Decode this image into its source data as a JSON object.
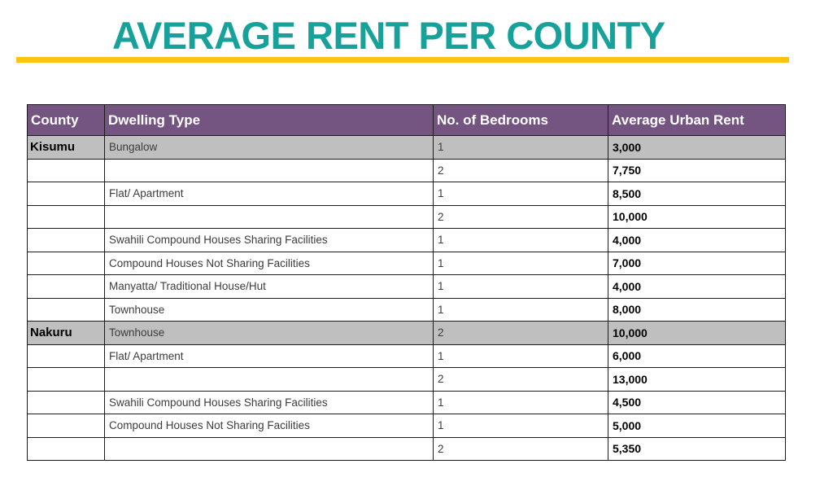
{
  "title": "AVERAGE RENT PER COUNTY",
  "colors": {
    "title_text": "#16A29A",
    "underline": "#FDC40F",
    "header_bg": "#745480",
    "header_text": "#FFFFFF",
    "band_row_bg": "#BFBFBF",
    "grid_border": "#1B1B1B"
  },
  "table": {
    "columns": [
      "County",
      "Dwelling Type",
      "No. of Bedrooms",
      "Average Urban Rent"
    ],
    "rows": [
      {
        "county": "Kisumu",
        "dwelling": "Bungalow",
        "bedrooms": "1",
        "rent": "3,000",
        "band": true
      },
      {
        "county": "",
        "dwelling": "",
        "bedrooms": "2",
        "rent": "7,750",
        "band": false
      },
      {
        "county": "",
        "dwelling": "Flat/ Apartment",
        "bedrooms": "1",
        "rent": "8,500",
        "band": false
      },
      {
        "county": "",
        "dwelling": "",
        "bedrooms": "2",
        "rent": "10,000",
        "band": false
      },
      {
        "county": "",
        "dwelling": "Swahili Compound Houses Sharing Facilities",
        "bedrooms": "1",
        "rent": "4,000",
        "band": false
      },
      {
        "county": "",
        "dwelling": "Compound Houses Not Sharing Facilities",
        "bedrooms": "1",
        "rent": "7,000",
        "band": false
      },
      {
        "county": "",
        "dwelling": "Manyatta/ Traditional House/Hut",
        "bedrooms": "1",
        "rent": "4,000",
        "band": false
      },
      {
        "county": "",
        "dwelling": "Townhouse",
        "bedrooms": "1",
        "rent": "8,000",
        "band": false
      },
      {
        "county": "Nakuru",
        "dwelling": "Townhouse",
        "bedrooms": "2",
        "rent": "10,000",
        "band": true
      },
      {
        "county": "",
        "dwelling": "Flat/ Apartment",
        "bedrooms": "1",
        "rent": "6,000",
        "band": false
      },
      {
        "county": "",
        "dwelling": "",
        "bedrooms": "2",
        "rent": "13,000",
        "band": false
      },
      {
        "county": "",
        "dwelling": "Swahili Compound Houses Sharing Facilities",
        "bedrooms": "1",
        "rent": "4,500",
        "band": false
      },
      {
        "county": "",
        "dwelling": "Compound Houses Not Sharing Facilities",
        "bedrooms": "1",
        "rent": "5,000",
        "band": false
      },
      {
        "county": "",
        "dwelling": "",
        "bedrooms": "2",
        "rent": "5,350",
        "band": false
      }
    ]
  }
}
